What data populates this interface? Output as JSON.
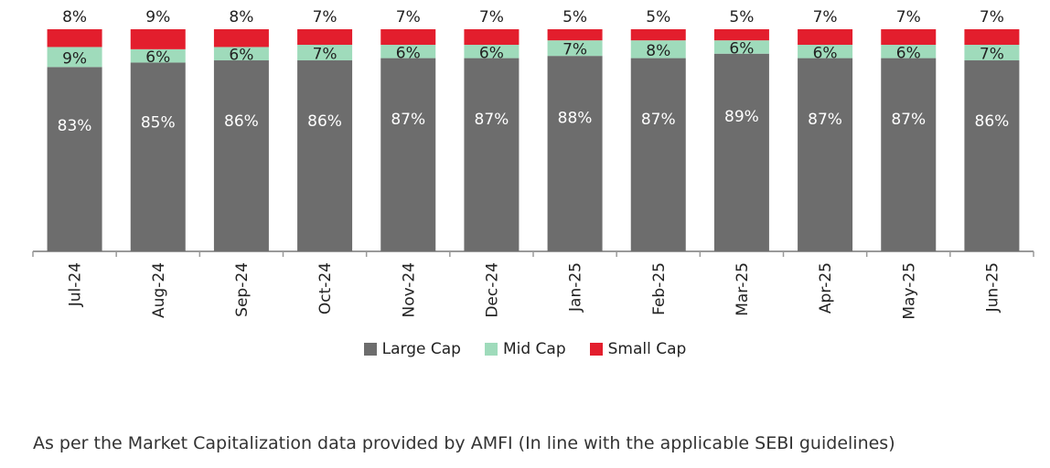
{
  "chart_data": {
    "type": "bar",
    "stacked": true,
    "categories": [
      "Jul-24",
      "Aug-24",
      "Sep-24",
      "Oct-24",
      "Nov-24",
      "Dec-24",
      "Jan-25",
      "Feb-25",
      "Mar-25",
      "Apr-25",
      "May-25",
      "Jun-25"
    ],
    "series": [
      {
        "name": "Large Cap",
        "color": "#6d6d6d",
        "values": [
          83,
          85,
          86,
          86,
          87,
          87,
          88,
          87,
          89,
          87,
          87,
          86
        ]
      },
      {
        "name": "Mid Cap",
        "color": "#9fdbbb",
        "values": [
          9,
          6,
          6,
          7,
          6,
          6,
          7,
          8,
          6,
          6,
          6,
          7
        ]
      },
      {
        "name": "Small Cap",
        "color": "#e31e2d",
        "values": [
          8,
          9,
          8,
          7,
          7,
          7,
          5,
          5,
          5,
          7,
          7,
          7
        ]
      }
    ],
    "value_labels": [
      [
        "83%",
        "85%",
        "86%",
        "86%",
        "87%",
        "87%",
        "88%",
        "87%",
        "89%",
        "87%",
        "87%",
        "86%"
      ],
      [
        "9%",
        "6%",
        "6%",
        "7%",
        "6%",
        "6%",
        "7%",
        "8%",
        "6%",
        "6%",
        "6%",
        "7%"
      ],
      [
        "8%",
        "9%",
        "8%",
        "7%",
        "7%",
        "7%",
        "5%",
        "5%",
        "5%",
        "7%",
        "7%",
        "7%"
      ]
    ],
    "ylim": [
      0,
      100
    ],
    "grid": false,
    "legend_position": "bottom"
  },
  "footnote": "As per the Market Capitalization data provided by AMFI (In line with the applicable SEBI guidelines)"
}
